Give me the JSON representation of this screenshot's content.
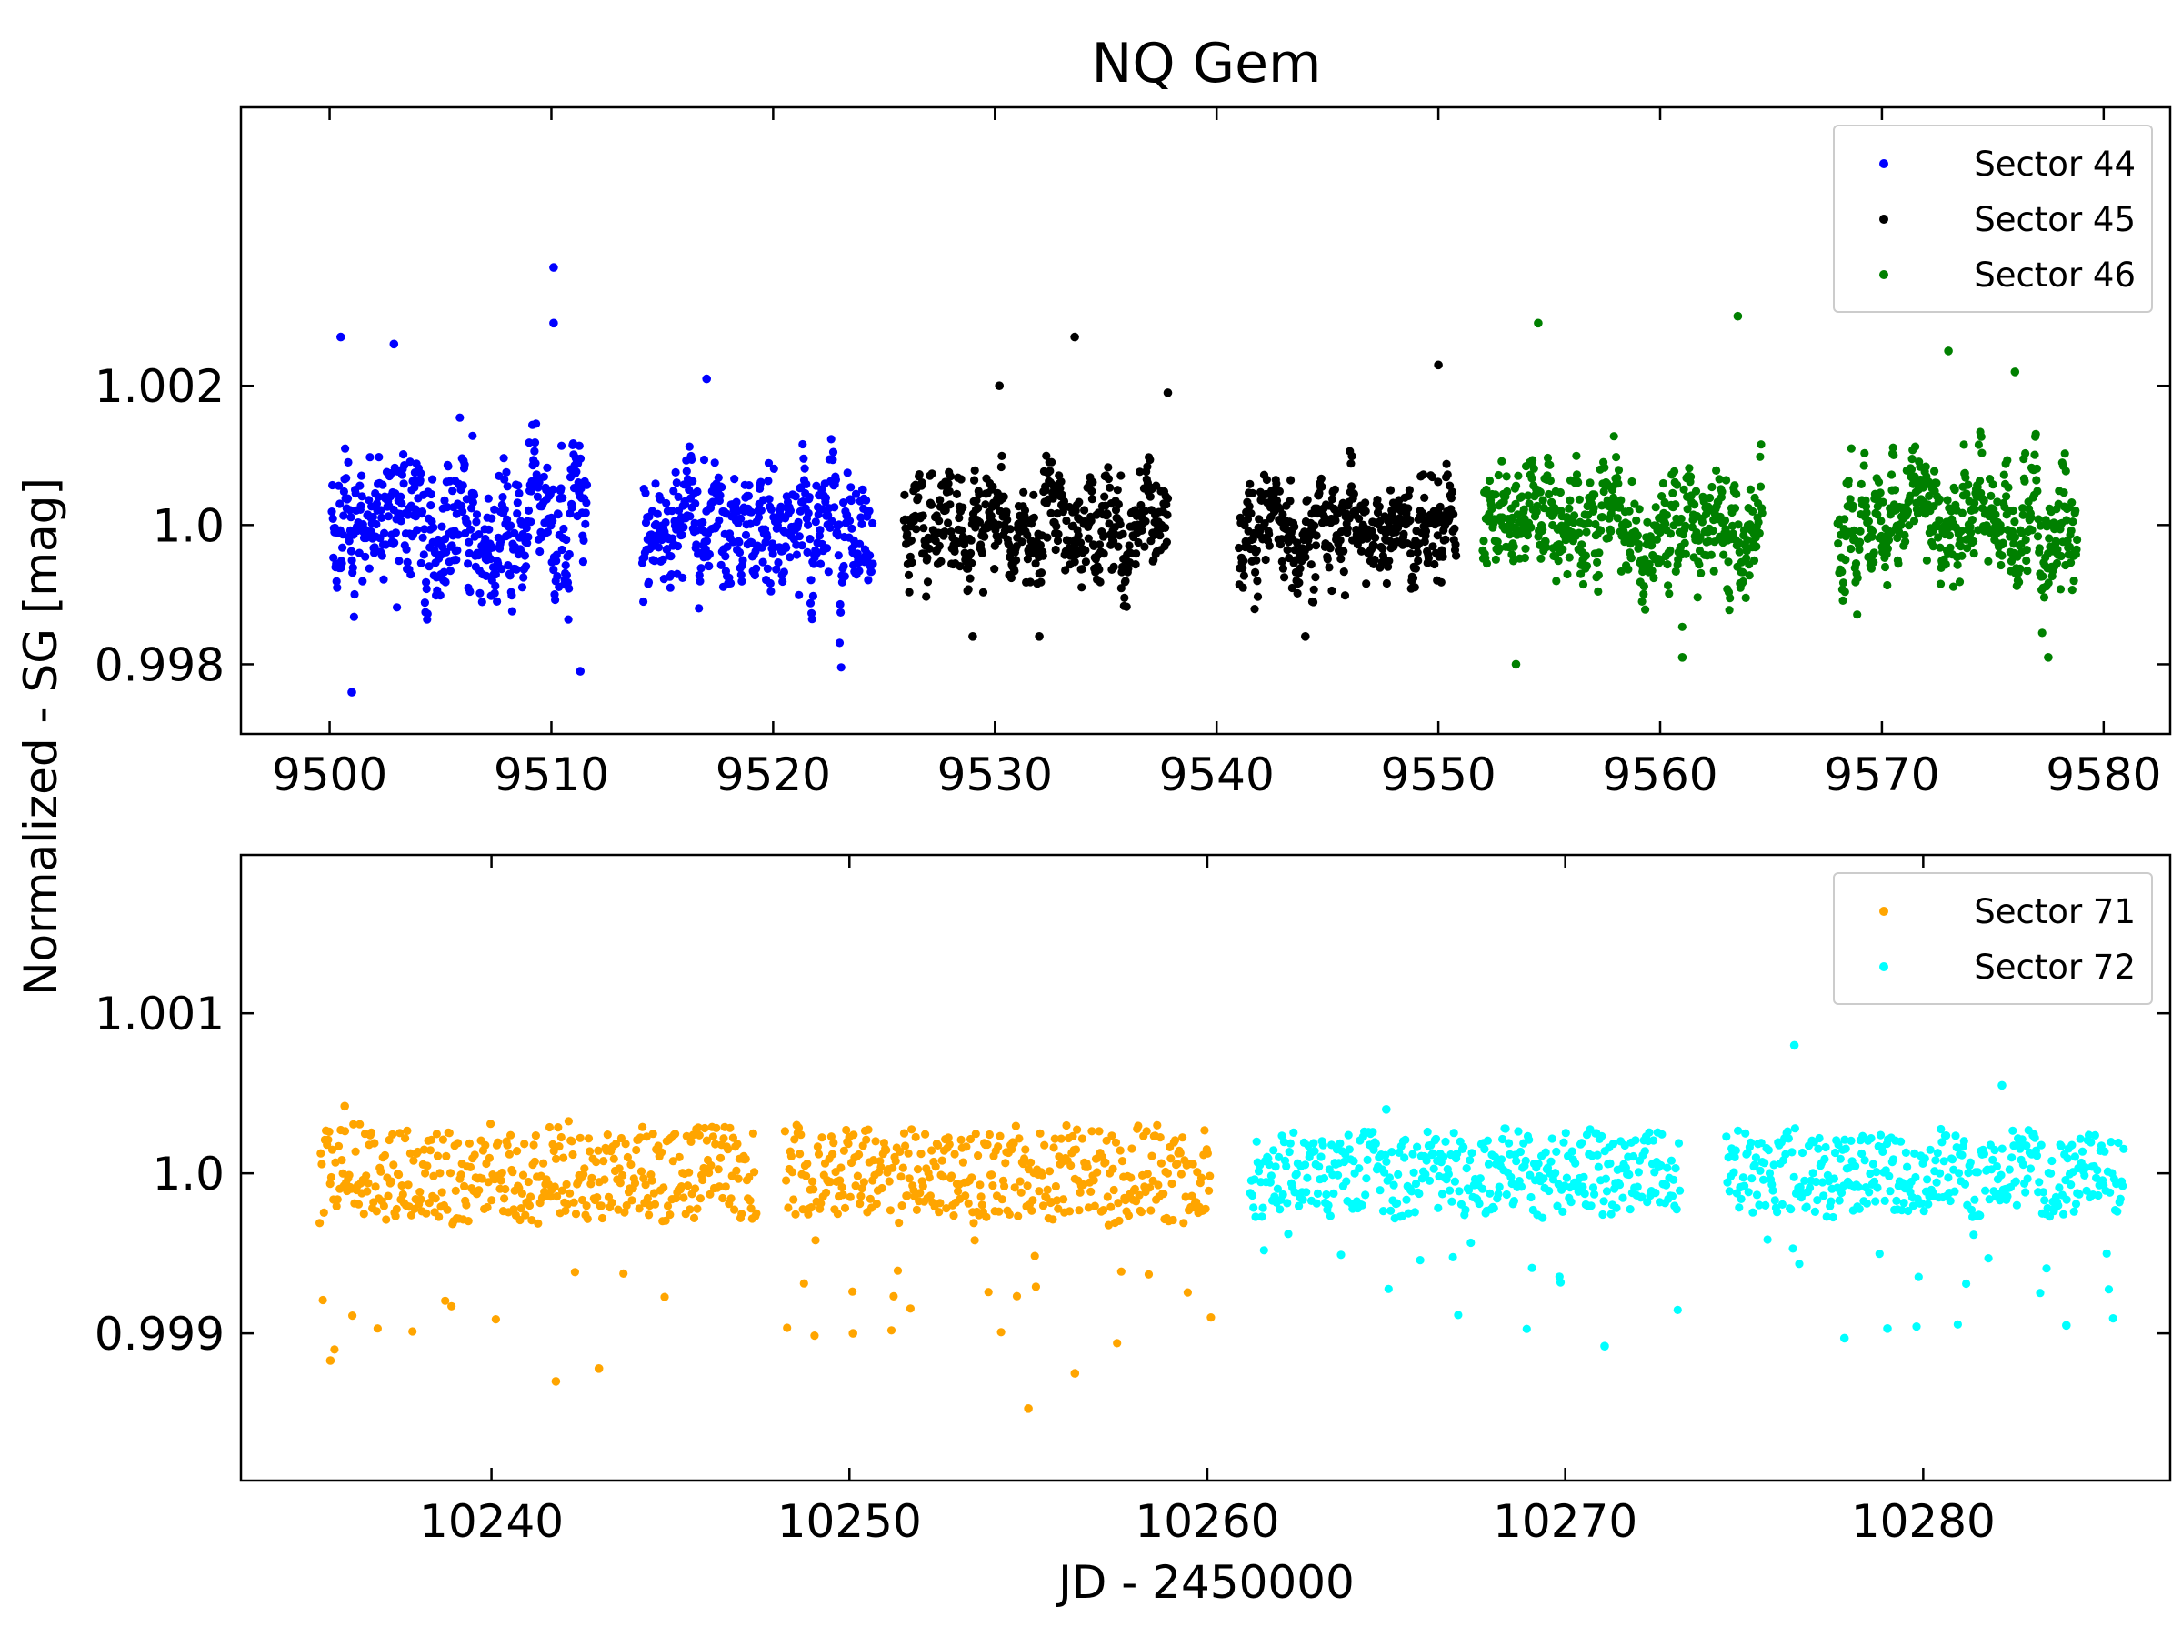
{
  "figure": {
    "title": "NQ Gem",
    "ylabel": "Normalized - SG [mag]",
    "xlabel": "JD - 2450000"
  },
  "chart_data": [
    {
      "type": "scatter",
      "panel": "top",
      "title": "NQ Gem",
      "xlabel": "",
      "ylabel": "Normalized - SG [mag]",
      "xlim": [
        9496,
        9583
      ],
      "ylim": [
        0.997,
        1.006
      ],
      "xticks": [
        9500,
        9510,
        9520,
        9530,
        9540,
        9550,
        9560,
        9570,
        9580
      ],
      "yticks": [
        0.998,
        1.0,
        1.002
      ],
      "ytick_labels": [
        "0.998",
        "1.0",
        "1.002"
      ],
      "grid": false,
      "legend_position": "top-right",
      "legend": [
        "Sector 44",
        "Sector 45",
        "Sector 46"
      ],
      "series": [
        {
          "name": "Sector 44",
          "color": "#0000ff",
          "segments": [
            [
              9500.1,
              9511.6
            ],
            [
              9514.1,
              9524.5
            ]
          ],
          "baseline": 1.0,
          "amplitude": 0.0008,
          "extremes": [
            [
              9510.1,
              1.0037
            ],
            [
              9501.0,
              0.9976
            ],
            [
              9500.5,
              1.0027
            ],
            [
              9510.1,
              1.0029
            ],
            [
              9517.0,
              1.0021
            ],
            [
              9511.3,
              0.9979
            ],
            [
              9502.9,
              1.0026
            ]
          ]
        },
        {
          "name": "Sector 45",
          "color": "#000000",
          "segments": [
            [
              9525.9,
              9537.8
            ],
            [
              9541.0,
              9550.8
            ]
          ],
          "baseline": 1.0,
          "amplitude": 0.0006,
          "extremes": [
            [
              9533.6,
              1.0027
            ],
            [
              9530.2,
              1.002
            ],
            [
              9537.8,
              1.0019
            ],
            [
              9550.0,
              1.0023
            ],
            [
              9544.0,
              0.9984
            ],
            [
              9529.0,
              0.9984
            ],
            [
              9532.0,
              0.9984
            ]
          ]
        },
        {
          "name": "Sector 46",
          "color": "#008000",
          "segments": [
            [
              9552.0,
              9564.6
            ],
            [
              9568.0,
              9578.8
            ]
          ],
          "baseline": 1.0,
          "amplitude": 0.0007,
          "extremes": [
            [
              9563.5,
              1.003
            ],
            [
              9554.5,
              1.0029
            ],
            [
              9573.0,
              1.0025
            ],
            [
              9576.0,
              1.0022
            ],
            [
              9553.5,
              0.998
            ],
            [
              9577.5,
              0.9981
            ],
            [
              9561.0,
              0.9981
            ]
          ]
        }
      ]
    },
    {
      "type": "scatter",
      "panel": "bottom",
      "title": "",
      "xlabel": "JD - 2450000",
      "ylabel": "Normalized - SG [mag]",
      "xlim": [
        10233,
        10286.9
      ],
      "ylim": [
        0.99808,
        1.00199
      ],
      "xticks": [
        10240,
        10250,
        10260,
        10270,
        10280
      ],
      "yticks": [
        0.999,
        1.0,
        1.001
      ],
      "ytick_labels": [
        "0.999",
        "1.0",
        "1.001"
      ],
      "grid": false,
      "legend_position": "top-right",
      "legend": [
        "Sector 71",
        "Sector 72"
      ],
      "series": [
        {
          "name": "Sector 71",
          "color": "#ffa500",
          "segments": [
            [
              10235.2,
              10247.4
            ],
            [
              10248.2,
              10260.1
            ]
          ],
          "baseline": 1.0,
          "amplitude": 0.00032,
          "extremes": [
            [
              10255.0,
              0.99853
            ],
            [
              10241.8,
              0.9987
            ],
            [
              10235.5,
              0.99883
            ],
            [
              10256.3,
              0.99875
            ],
            [
              10250.1,
              0.999
            ],
            [
              10243.0,
              0.99878
            ],
            [
              10235.9,
              1.00042
            ]
          ]
        },
        {
          "name": "Sector 72",
          "color": "#00ffff",
          "segments": [
            [
              10261.2,
              10273.2
            ],
            [
              10274.5,
              10285.6
            ]
          ],
          "baseline": 1.0,
          "amplitude": 0.00028,
          "extremes": [
            [
              10276.4,
              1.0008
            ],
            [
              10282.2,
              1.00055
            ],
            [
              10271.1,
              0.99892
            ],
            [
              10277.8,
              0.99897
            ],
            [
              10284.0,
              0.99905
            ],
            [
              10279.0,
              0.99903
            ],
            [
              10265.0,
              1.0004
            ]
          ]
        }
      ]
    }
  ]
}
